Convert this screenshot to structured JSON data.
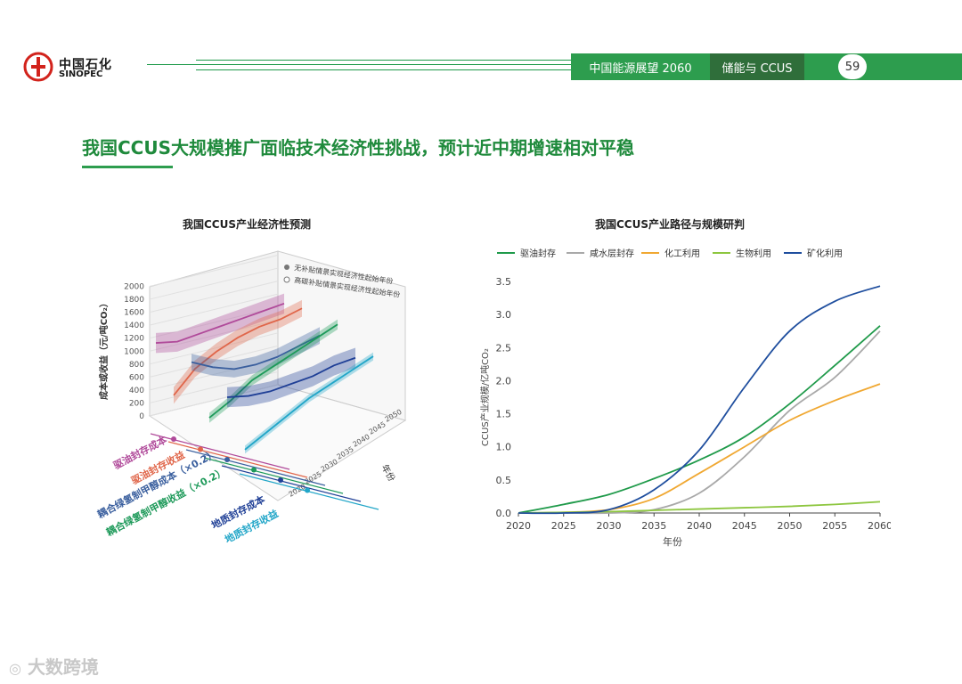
{
  "header": {
    "logo_cn": "中国石化",
    "logo_en": "SINOPEC",
    "band_report": "中国能源展望 2060",
    "band_section": "储能与 CCUS",
    "page_number": "59"
  },
  "title": "我国CCUS大规模推广面临技术经济性挑战，预计近中期增速相对平稳",
  "watermark": "大数跨境",
  "colors": {
    "brand_green": "#2d9d4e",
    "dark_green": "#2f6e3a"
  },
  "chart_data": [
    {
      "type": "area",
      "title": "我国CCUS产业经济性预测",
      "projection": "3d",
      "zlabel": "成本或收益（元/吨CO₂）",
      "z_ticks": [
        0,
        200,
        400,
        600,
        800,
        1000,
        1200,
        1400,
        1600,
        1800,
        2000
      ],
      "zlim": [
        0,
        2000
      ],
      "year_label": "年份",
      "year_ticks": [
        2020,
        2025,
        2030,
        2035,
        2040,
        2045,
        2050
      ],
      "legend": [
        "无补贴情景实现经济性起始年份",
        "高碳补贴情景实现经济性起始年份"
      ],
      "series": [
        {
          "name": "驱油封存成本",
          "color": "#b04a9a",
          "values": [
            1150,
            1100,
            1150,
            1200,
            1250,
            1300,
            1350
          ],
          "band": 300
        },
        {
          "name": "驱油封存收益",
          "color": "#e0664a",
          "values": [
            450,
            800,
            1000,
            1150,
            1250,
            1300,
            1400
          ],
          "band": 250
        },
        {
          "name": "耦合绿氢制甲醇成本（×0.2）",
          "color": "#3a5f9e",
          "values": [
            1100,
            950,
            850,
            850,
            900,
            1000,
            1100
          ],
          "band": 250
        },
        {
          "name": "耦合绿氢制甲醇收益（×0.2）",
          "color": "#1e9a5a",
          "values": [
            350,
            550,
            800,
            950,
            1100,
            1250,
            1400
          ],
          "band": 150
        },
        {
          "name": "地质封存成本",
          "color": "#1f3f96",
          "values": [
            800,
            750,
            750,
            800,
            850,
            950,
            1000
          ],
          "band": 300
        },
        {
          "name": "地质封存收益",
          "color": "#22a6c8",
          "values": [
            100,
            300,
            500,
            700,
            850,
            1000,
            1150
          ],
          "band": 120
        }
      ]
    },
    {
      "type": "line",
      "title": "我国CCUS产业路径与规模研判",
      "xlabel": "年份",
      "ylabel": "CCUS产业规模/亿吨CO₂",
      "x": [
        2020,
        2025,
        2030,
        2035,
        2040,
        2045,
        2050,
        2055,
        2060
      ],
      "xlim": [
        2020,
        2060
      ],
      "ylim": [
        0,
        3.5
      ],
      "yticks": [
        0.0,
        0.5,
        1.0,
        1.5,
        2.0,
        2.5,
        3.0,
        3.5
      ],
      "y_tick_labels": [
        "0.0",
        "0.5",
        "1.0",
        "1.5",
        "2.0",
        "2.5",
        "3.0",
        "3.5"
      ],
      "legend_position": "top",
      "series": [
        {
          "name": "驱油封存",
          "color": "#1f9a4a",
          "values": [
            0.0,
            0.13,
            0.28,
            0.52,
            0.8,
            1.15,
            1.65,
            2.23,
            2.83
          ]
        },
        {
          "name": "咸水层封存",
          "color": "#a9a9a9",
          "values": [
            0.0,
            0.0,
            0.0,
            0.05,
            0.3,
            0.85,
            1.55,
            2.05,
            2.75
          ]
        },
        {
          "name": "化工利用",
          "color": "#f0a832",
          "values": [
            0.0,
            0.01,
            0.05,
            0.22,
            0.6,
            1.0,
            1.4,
            1.7,
            1.95
          ]
        },
        {
          "name": "生物利用",
          "color": "#8dc63f",
          "values": [
            0.0,
            0.01,
            0.02,
            0.04,
            0.06,
            0.08,
            0.1,
            0.13,
            0.17
          ]
        },
        {
          "name": "矿化利用",
          "color": "#1f4e9e",
          "values": [
            0.0,
            0.0,
            0.05,
            0.35,
            0.95,
            1.9,
            2.75,
            3.2,
            3.43
          ]
        }
      ]
    }
  ]
}
